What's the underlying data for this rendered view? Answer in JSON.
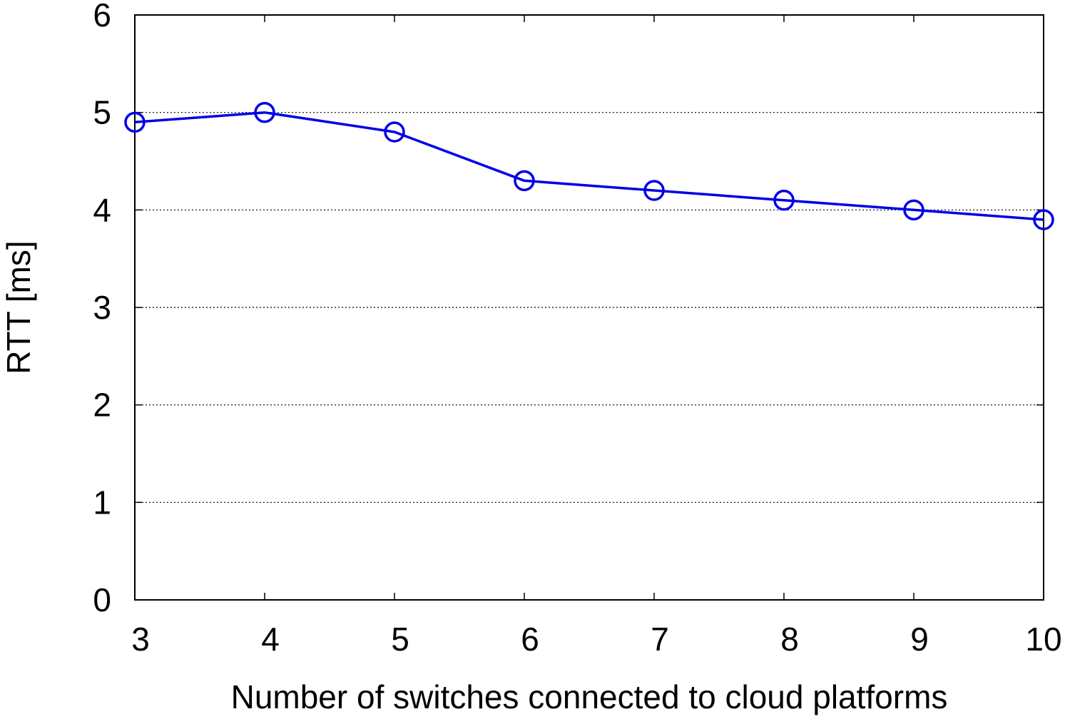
{
  "chart_data": {
    "type": "line",
    "title": "",
    "xlabel": "Number of switches connected to cloud platforms",
    "ylabel": "RTT [ms]",
    "xlim": [
      3,
      10
    ],
    "ylim": [
      0,
      6
    ],
    "x_ticks": [
      3,
      4,
      5,
      6,
      7,
      8,
      9,
      10
    ],
    "y_ticks": [
      0,
      1,
      2,
      3,
      4,
      5,
      6
    ],
    "grid": "horizontal dotted",
    "legend": "none",
    "series": [
      {
        "color": "#0000e6",
        "marker": "open-circle",
        "x": [
          3,
          4,
          5,
          6,
          7,
          8,
          9,
          10
        ],
        "y": [
          4.9,
          5.0,
          4.8,
          4.3,
          4.2,
          4.1,
          4.0,
          3.9
        ]
      }
    ]
  }
}
